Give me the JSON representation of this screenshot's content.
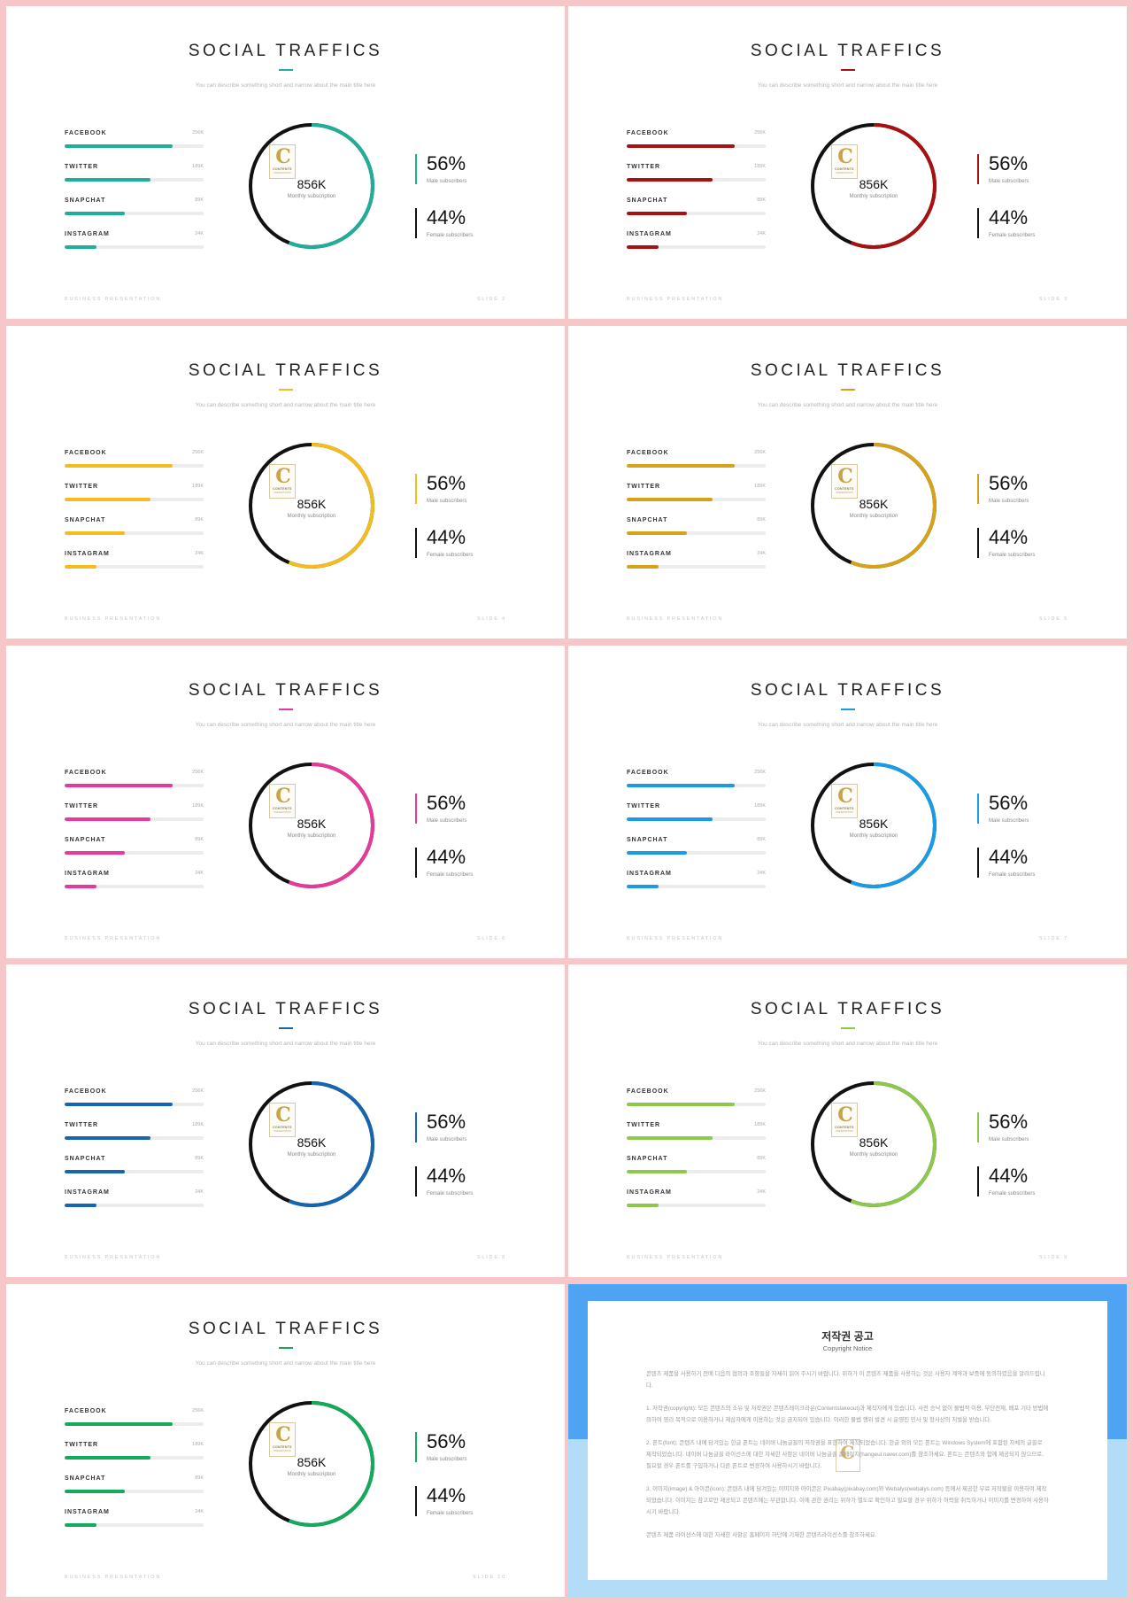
{
  "common": {
    "title": "SOCIAL TRAFFICS",
    "subtitle": "You can describe something short and narrow about the main title here",
    "bars": [
      {
        "name": "FACEBOOK",
        "value": "256K",
        "fill": 0.78
      },
      {
        "name": "TWITTER",
        "value": "189K",
        "fill": 0.62
      },
      {
        "name": "SNAPCHAT",
        "value": "89K",
        "fill": 0.43
      },
      {
        "name": "INSTAGRAM",
        "value": "24K",
        "fill": 0.23
      }
    ],
    "ring_value": "856K",
    "ring_label": "Monthly subscription",
    "ring_accent_fraction": 0.56,
    "male_pct": "56%",
    "male_label": "Male subscribers",
    "female_pct": "44%",
    "female_label": "Female subscribers",
    "footer_left": "BUSINESS PRESENTATION",
    "logo_letter": "C",
    "logo_text": "CONTENTS",
    "logo_sub": "PRESENTATION"
  },
  "slides": [
    {
      "accent": "#1fae99",
      "slide_label": "SLIDE 2"
    },
    {
      "accent": "#a81111",
      "slide_label": "SLIDE 3"
    },
    {
      "accent": "#f2bd1d",
      "slide_label": "SLIDE 4"
    },
    {
      "accent": "#d6a21a",
      "slide_label": "SLIDE 5"
    },
    {
      "accent": "#e8399a",
      "slide_label": "SLIDE 6"
    },
    {
      "accent": "#1a9be6",
      "slide_label": "SLIDE 7"
    },
    {
      "accent": "#1565b0",
      "slide_label": "SLIDE 8"
    },
    {
      "accent": "#8cc84b",
      "slide_label": "SLIDE 9"
    },
    {
      "accent": "#13aa5a",
      "slide_label": "SLIDE 10"
    }
  ],
  "notice": {
    "title": "저작권 공고",
    "subtitle": "Copyright Notice",
    "paragraphs": [
      "콘텐츠 제품을 사용하기 전에 다음의 협의과 조항들을 자세히 읽어 주시기 바랍니다. 위하가 이 콘텐츠 제품을 사용하는 것은 사용자 계약과 보증에 동의하였음을 알려드립니다.",
      "1. 저작권(copyright): 모든 콘텐츠의 소유 및 저작권은 콘텐츠레이크라운(Contentslakeout)과 제작자에게 있습니다. 사전 승낙 없이 불법적 이용, 무단전재, 배포 기타 방법에 의하여 영리 목적으로 이용하거나 제삼자에게 이용하는 것은 금지되어 있습니다. 이러한 불법 행위 발견 시 운영진 민사 및 형사상의 처벌을 받습니다.",
      "2. 폰트(font): 콘텐츠 내에 담겨있는 한글 폰트는 네이버 나눔글꼴의 저작권을 표현하여 제작되었습니다. 한글 외의 모든 폰트는 Windows System에 포함된 자체의 글꼴로 제작되었습니다. 네이버 나눔글꼴 라이선스에 대한 자세한 사항은 네이버 나눔글꼴 홈페이지(hangeul.naver.com)를 참조하세요. 폰트는 콘텐츠와 함께 제공되지 않으므로, 필요할 경우 폰트를 구입하거나 다른 폰트로 변경하여 사용하시기 바랍니다.",
      "3. 이미지(image) & 아이콘(icon): 콘텐츠 내에 담겨있는 이미지와 아이콘은 Pixabay(pixabay.com)와 Webalys(webalys.com) 등에서 제공한 무료 저작물을 이용하여 제작되었습니다. 이미지는 참고로만 제공되고 콘텐츠에는 무관합니다. 이에 관한 권리는 위하가 별도로 확인하고 필요할 경우 위하가 허락을 취득하거나 이미지를 변경하여 사용하시기 바랍니다.",
      "콘텐츠 제품 라이선스에 대한 자세한 사항은 홈페이지 하단에 기재한 콘텐츠라이선스를 참조하세요."
    ]
  }
}
